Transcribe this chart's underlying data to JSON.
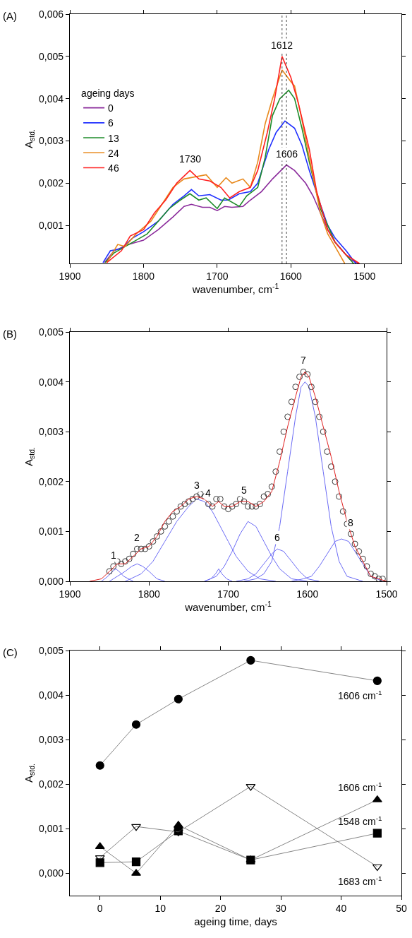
{
  "chart_data": [
    {
      "type": "line",
      "title": "(A)",
      "xlabel": "wavenumber, cm$^{-1}$",
      "ylabel": "A$_{std.}$",
      "legend_title": "ageing days",
      "legend": "left",
      "xlim": [
        1900,
        1450
      ],
      "xticks": [
        1900,
        1800,
        1700,
        1600,
        1500
      ],
      "ylim": [
        0.0001,
        0.006
      ],
      "yticks": [
        {
          "value": 0.001,
          "label": "0,001"
        },
        {
          "value": 0.002,
          "label": "0,002"
        },
        {
          "value": 0.003,
          "label": "0,003"
        },
        {
          "value": 0.004,
          "label": "0,004"
        },
        {
          "value": 0.005,
          "label": "0,005"
        },
        {
          "value": 0.006,
          "label": "0,006"
        }
      ],
      "ref_lines": [
        {
          "axis": "x",
          "value": 1612,
          "color": "#444444",
          "line_style": "dotted"
        },
        {
          "axis": "x",
          "value": 1606,
          "color": "#444444",
          "line_style": "dotted"
        }
      ],
      "annotations": [
        {
          "text": "1730",
          "x": 1737,
          "y": 0.0023
        },
        {
          "text": "1612",
          "x": 1612,
          "y": 0.005
        },
        {
          "text": "1606",
          "x": 1606,
          "y": 0.00243
        }
      ],
      "series": [
        {
          "name": "0",
          "color": "#8b2c9c",
          "x": [
            1853,
            1840,
            1820,
            1800,
            1780,
            1760,
            1745,
            1735,
            1720,
            1710,
            1700,
            1690,
            1680,
            1665,
            1655,
            1640,
            1625,
            1606,
            1595,
            1580,
            1570,
            1560,
            1550,
            1540,
            1530,
            1520,
            1508
          ],
          "values": [
            0.00012,
            0.0004,
            0.00055,
            0.00065,
            0.0009,
            0.0012,
            0.00145,
            0.0015,
            0.00143,
            0.00143,
            0.00135,
            0.00145,
            0.00143,
            0.00145,
            0.0016,
            0.0018,
            0.0021,
            0.00243,
            0.0023,
            0.002,
            0.0017,
            0.0013,
            0.0009,
            0.0006,
            0.0004,
            0.0002,
            0.0001
          ]
        },
        {
          "name": "6",
          "color": "#1f2fff",
          "x": [
            1855,
            1845,
            1830,
            1815,
            1800,
            1780,
            1760,
            1745,
            1735,
            1725,
            1710,
            1695,
            1685,
            1670,
            1655,
            1645,
            1630,
            1620,
            1608,
            1595,
            1585,
            1575,
            1560,
            1550,
            1540,
            1525,
            1512
          ],
          "values": [
            0.00012,
            0.0004,
            0.00045,
            0.0007,
            0.00085,
            0.0011,
            0.0015,
            0.0017,
            0.00185,
            0.0017,
            0.00173,
            0.0016,
            0.0016,
            0.00175,
            0.0018,
            0.002,
            0.0028,
            0.0032,
            0.00347,
            0.0033,
            0.0029,
            0.0023,
            0.0015,
            0.001,
            0.0007,
            0.0004,
            0.0001
          ]
        },
        {
          "name": "13",
          "color": "#1e8c2a",
          "x": [
            1852,
            1840,
            1825,
            1810,
            1795,
            1780,
            1765,
            1750,
            1737,
            1725,
            1715,
            1700,
            1690,
            1670,
            1660,
            1645,
            1635,
            1625,
            1615,
            1603,
            1595,
            1585,
            1575,
            1560,
            1550,
            1540,
            1525,
            1515
          ],
          "values": [
            0.00012,
            0.00035,
            0.0005,
            0.00065,
            0.0008,
            0.0011,
            0.0014,
            0.0016,
            0.00175,
            0.0016,
            0.00165,
            0.0014,
            0.00165,
            0.00145,
            0.0017,
            0.0019,
            0.0026,
            0.0036,
            0.004,
            0.0042,
            0.004,
            0.0033,
            0.0025,
            0.0014,
            0.001,
            0.0006,
            0.0003,
            0.0001
          ]
        },
        {
          "name": "24",
          "color": "#e8891c",
          "x": [
            1850,
            1835,
            1825,
            1810,
            1790,
            1775,
            1760,
            1745,
            1730,
            1715,
            1700,
            1688,
            1680,
            1665,
            1655,
            1645,
            1635,
            1625,
            1612,
            1600,
            1595,
            1585,
            1575,
            1560,
            1550,
            1540,
            1527
          ],
          "values": [
            0.00012,
            0.00055,
            0.0005,
            0.0008,
            0.0011,
            0.0015,
            0.0019,
            0.0021,
            0.00215,
            0.0022,
            0.0019,
            0.00213,
            0.002,
            0.0021,
            0.0019,
            0.0025,
            0.0034,
            0.004,
            0.00468,
            0.0044,
            0.0043,
            0.0035,
            0.0026,
            0.0013,
            0.0008,
            0.0005,
            0.0001
          ]
        },
        {
          "name": "46",
          "color": "#ff2020",
          "x": [
            1850,
            1830,
            1818,
            1800,
            1785,
            1770,
            1755,
            1737,
            1725,
            1710,
            1695,
            1683,
            1670,
            1655,
            1645,
            1632,
            1622,
            1612,
            1600,
            1590,
            1575,
            1565,
            1550,
            1540,
            1525,
            1507
          ],
          "values": [
            0.00012,
            0.0004,
            0.00075,
            0.0009,
            0.0013,
            0.0016,
            0.002,
            0.0023,
            0.0021,
            0.00205,
            0.0019,
            0.00165,
            0.0018,
            0.0019,
            0.0023,
            0.0032,
            0.004,
            0.005,
            0.0045,
            0.0039,
            0.0028,
            0.0018,
            0.0009,
            0.0006,
            0.0003,
            0.0001
          ]
        }
      ]
    },
    {
      "type": "line",
      "title": "(B)",
      "xlabel": "wavenumber, cm$^{-1}$",
      "ylabel": "A$_{std.}$",
      "xlim": [
        1900,
        1500
      ],
      "xticks": [
        1900,
        1800,
        1700,
        1600,
        1500
      ],
      "ylim": [
        0,
        0.005
      ],
      "yticks": [
        {
          "value": 0,
          "label": "0,000"
        },
        {
          "value": 0.001,
          "label": "0,001"
        },
        {
          "value": 0.002,
          "label": "0,002"
        },
        {
          "value": 0.003,
          "label": "0,003"
        },
        {
          "value": 0.004,
          "label": "0,004"
        },
        {
          "value": 0.005,
          "label": "0,005"
        }
      ],
      "annotations": [
        {
          "text": "1",
          "x": 1845,
          "y": 0.0003
        },
        {
          "text": "2",
          "x": 1815,
          "y": 0.00065
        },
        {
          "text": "3",
          "x": 1740,
          "y": 0.0017
        },
        {
          "text": "4",
          "x": 1725,
          "y": 0.00155
        },
        {
          "text": "5",
          "x": 1680,
          "y": 0.0016
        },
        {
          "text": "6",
          "x": 1638,
          "y": 0.00065
        },
        {
          "text": "7",
          "x": 1605,
          "y": 0.0042
        },
        {
          "text": "8",
          "x": 1545,
          "y": 0.00095
        }
      ],
      "series": [
        {
          "type": "line",
          "color": "#6b6bf5",
          "x": [
            1860,
            1852,
            1846,
            1842,
            1838,
            1832,
            1826,
            1820
          ],
          "values": [
            0,
            0.0001,
            0.0002,
            0.00025,
            0.0002,
            0.0001,
            5e-05,
            0
          ]
        },
        {
          "type": "line",
          "color": "#6b6bf5",
          "x": [
            1850,
            1840,
            1830,
            1822,
            1815,
            1808,
            1800,
            1790,
            1780
          ],
          "values": [
            0,
            0.0001,
            0.0002,
            0.0003,
            0.00035,
            0.0003,
            0.0002,
            5e-05,
            0
          ]
        },
        {
          "type": "line",
          "color": "#6b6bf5",
          "x": [
            1830,
            1810,
            1795,
            1780,
            1765,
            1750,
            1740,
            1730,
            1720,
            1710,
            1700,
            1690,
            1675,
            1660,
            1640
          ],
          "values": [
            0,
            0.00015,
            0.0004,
            0.0008,
            0.0012,
            0.0015,
            0.00165,
            0.0016,
            0.0014,
            0.0011,
            0.0008,
            0.0005,
            0.0002,
            5e-05,
            0
          ]
        },
        {
          "type": "line",
          "color": "#6b6bf5",
          "x": [
            1730,
            1722,
            1716,
            1712,
            1708,
            1702,
            1695
          ],
          "values": [
            0,
            5e-05,
            0.00015,
            0.00025,
            0.00015,
            5e-05,
            0
          ]
        },
        {
          "type": "line",
          "color": "#6b6bf5",
          "x": [
            1730,
            1715,
            1705,
            1695,
            1685,
            1675,
            1665,
            1655,
            1645,
            1635,
            1620,
            1600
          ],
          "values": [
            0,
            0.0001,
            0.0003,
            0.0006,
            0.00095,
            0.0012,
            0.0011,
            0.0008,
            0.0005,
            0.00025,
            5e-05,
            0
          ]
        },
        {
          "type": "line",
          "color": "#6b6bf5",
          "x": [
            1690,
            1675,
            1665,
            1655,
            1645,
            1638,
            1630,
            1620,
            1610,
            1600,
            1585
          ],
          "values": [
            0,
            5e-05,
            0.00015,
            0.00035,
            0.00055,
            0.00065,
            0.0006,
            0.0004,
            0.0002,
            5e-05,
            0
          ]
        },
        {
          "type": "line",
          "color": "#6b6bf5",
          "x": [
            1680,
            1665,
            1655,
            1645,
            1635,
            1625,
            1615,
            1608,
            1603,
            1598,
            1590,
            1580,
            1570,
            1560,
            1550,
            1540,
            1530
          ],
          "values": [
            0,
            5e-05,
            0.00015,
            0.0004,
            0.0011,
            0.0022,
            0.0033,
            0.0039,
            0.004,
            0.0039,
            0.0033,
            0.0022,
            0.0011,
            0.0004,
            0.0001,
            5e-05,
            0
          ]
        },
        {
          "type": "line",
          "color": "#6b6bf5",
          "x": [
            1620,
            1605,
            1595,
            1585,
            1575,
            1565,
            1557,
            1548,
            1540,
            1530,
            1520,
            1505
          ],
          "values": [
            0,
            5e-05,
            0.0001,
            0.0003,
            0.00055,
            0.0008,
            0.00085,
            0.0008,
            0.0006,
            0.00035,
            0.0001,
            0
          ]
        },
        {
          "type": "scatter",
          "marker": "circle",
          "color": "#3a3a3a",
          "x": [
            1850,
            1845,
            1840,
            1835,
            1830,
            1825,
            1820,
            1815,
            1810,
            1805,
            1800,
            1795,
            1790,
            1785,
            1780,
            1775,
            1770,
            1765,
            1760,
            1755,
            1750,
            1745,
            1740,
            1735,
            1730,
            1725,
            1720,
            1715,
            1710,
            1705,
            1700,
            1695,
            1690,
            1685,
            1680,
            1675,
            1670,
            1665,
            1660,
            1655,
            1650,
            1645,
            1640,
            1635,
            1630,
            1625,
            1620,
            1615,
            1610,
            1605,
            1600,
            1595,
            1590,
            1585,
            1580,
            1575,
            1570,
            1565,
            1560,
            1555,
            1550,
            1545,
            1540,
            1535,
            1530,
            1525,
            1520,
            1515,
            1510,
            1505
          ],
          "values": [
            0.0002,
            0.0003,
            0.0004,
            0.00035,
            0.0004,
            0.00045,
            0.00055,
            0.00065,
            0.00065,
            0.00065,
            0.0007,
            0.0008,
            0.0009,
            0.001,
            0.0011,
            0.0012,
            0.0013,
            0.0014,
            0.0015,
            0.00155,
            0.0016,
            0.00165,
            0.0017,
            0.00175,
            0.0017,
            0.00155,
            0.0015,
            0.00165,
            0.00165,
            0.0015,
            0.00145,
            0.0015,
            0.00155,
            0.00165,
            0.0016,
            0.0015,
            0.0015,
            0.0015,
            0.00155,
            0.0017,
            0.00175,
            0.0019,
            0.0022,
            0.0026,
            0.003,
            0.0033,
            0.0036,
            0.0039,
            0.0041,
            0.0042,
            0.00415,
            0.0039,
            0.0036,
            0.0033,
            0.003,
            0.0026,
            0.0023,
            0.002,
            0.0017,
            0.0014,
            0.00115,
            0.00095,
            0.00075,
            0.0006,
            0.00045,
            0.0003,
            0.00015,
            0.0001,
            5e-05,
            5e-05
          ]
        },
        {
          "type": "line",
          "color": "#e02020",
          "x": [
            1875,
            1860,
            1850,
            1840,
            1830,
            1820,
            1810,
            1800,
            1790,
            1780,
            1770,
            1760,
            1750,
            1740,
            1730,
            1720,
            1712,
            1705,
            1695,
            1685,
            1675,
            1665,
            1655,
            1645,
            1635,
            1625,
            1615,
            1608,
            1603,
            1598,
            1590,
            1580,
            1570,
            1560,
            1550,
            1540,
            1530,
            1520,
            1510,
            1500
          ],
          "values": [
            0,
            5e-05,
            0.0002,
            0.00035,
            0.00035,
            0.0005,
            0.00065,
            0.0007,
            0.0009,
            0.0012,
            0.0014,
            0.0015,
            0.00165,
            0.0017,
            0.00165,
            0.0015,
            0.0016,
            0.0015,
            0.0015,
            0.0016,
            0.0016,
            0.0015,
            0.0016,
            0.0018,
            0.0024,
            0.0031,
            0.0037,
            0.0041,
            0.0042,
            0.0041,
            0.0037,
            0.0031,
            0.0025,
            0.0018,
            0.0012,
            0.0007,
            0.0004,
            0.0001,
            5e-05,
            0
          ]
        }
      ]
    },
    {
      "type": "line",
      "title": "(C)",
      "xlabel": "ageing time, days",
      "ylabel": "A$_{std.}$",
      "xlim": [
        -5,
        50
      ],
      "xticks": [
        0,
        10,
        20,
        30,
        40,
        50
      ],
      "ylim": [
        -0.0005,
        0.005
      ],
      "yticks": [
        {
          "value": 0,
          "label": "0,000"
        },
        {
          "value": 0.001,
          "label": "0,001"
        },
        {
          "value": 0.002,
          "label": "0,002"
        },
        {
          "value": 0.003,
          "label": "0,003"
        },
        {
          "value": 0.004,
          "label": "0,004"
        },
        {
          "value": 0.005,
          "label": "0,005"
        }
      ],
      "x": [
        0,
        6,
        13,
        25,
        46
      ],
      "series": [
        {
          "name": "1606 cm$^{-1}$",
          "color": "#000000",
          "marker": "circle",
          "values": [
            0.00242,
            0.00334,
            0.00391,
            0.00478,
            0.00432
          ]
        },
        {
          "name": "1606 cm$^{-1}$",
          "color": "#000000",
          "marker": "triangle",
          "values": [
            0.0006,
            0.0,
            0.00108,
            0.0003,
            0.00165
          ]
        },
        {
          "name": "1548 cm$^{-1}$",
          "color": "#000000",
          "marker": "square",
          "values": [
            0.00024,
            0.00026,
            0.00095,
            0.0003,
            0.0009
          ]
        },
        {
          "name": "1683 cm$^{-1}$",
          "color": "#000000",
          "marker": "triangle-down",
          "values": [
            0.00035,
            0.00105,
            0.00093,
            0.00195,
            0.00015
          ]
        }
      ]
    }
  ]
}
